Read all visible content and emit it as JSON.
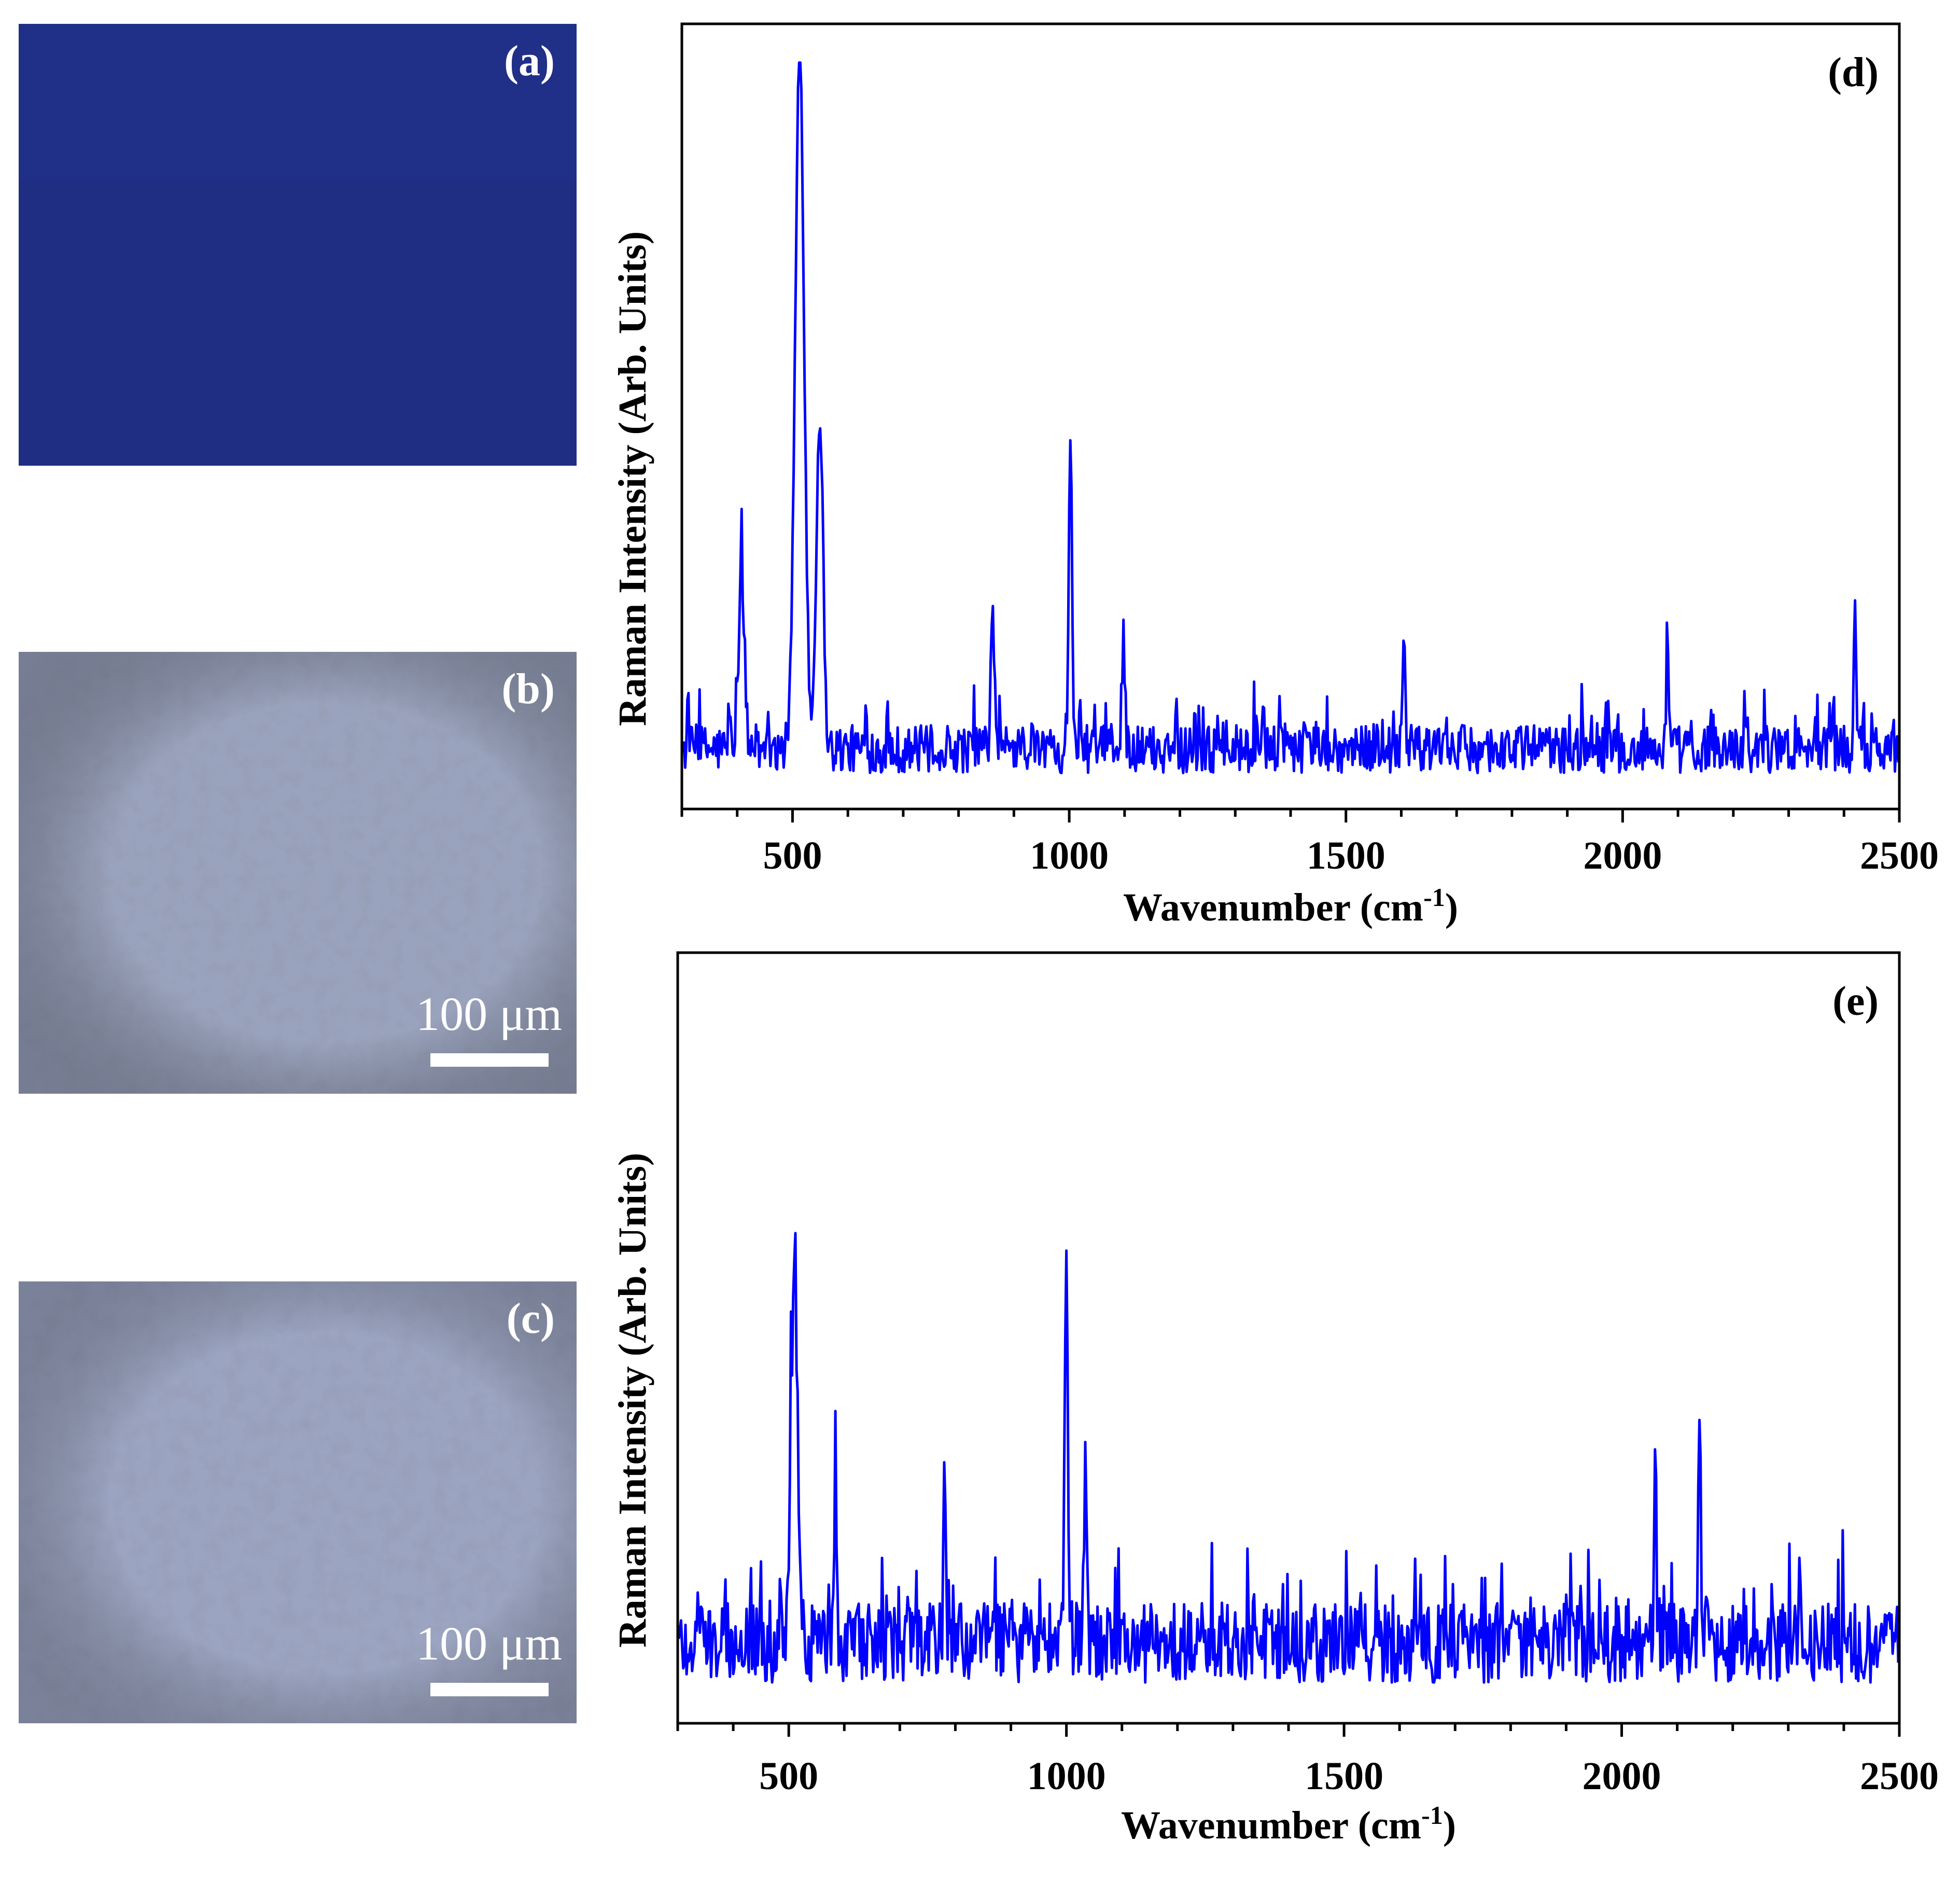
{
  "panels": {
    "a": {
      "label": "(a)"
    },
    "b": {
      "label": "(b)",
      "scale": "100 μm"
    },
    "c": {
      "label": "(c)",
      "scale": "100 μm"
    }
  },
  "colors": {
    "photo_a": "#1f2d83",
    "photo_bc": "#9aa3bd",
    "series": "#0000ff"
  },
  "chart_data": [
    {
      "type": "line",
      "label": "(d)",
      "xlabel": "Wavenumber (cm",
      "xlabel_sup": "-1",
      "xlabel_end": ")",
      "ylabel": "Raman Intensity (Arb. Units)",
      "xlim": [
        300,
        2500
      ],
      "ylim": [
        0,
        1
      ],
      "xticks": [
        500,
        1000,
        1500,
        2000,
        2500
      ],
      "grid": false,
      "noise_amplitude": 0.065,
      "baseline": 0.06,
      "series": [
        {
          "peaks": [
            {
              "x": 408,
              "y": 0.25,
              "w": 5
            },
            {
              "x": 513,
              "y": 0.96,
              "w": 8
            },
            {
              "x": 549,
              "y": 0.46,
              "w": 6
            },
            {
              "x": 862,
              "y": 0.18,
              "w": 3
            },
            {
              "x": 1002,
              "y": 0.41,
              "w": 3
            },
            {
              "x": 1098,
              "y": 0.15,
              "w": 3
            },
            {
              "x": 1604,
              "y": 0.13,
              "w": 3
            },
            {
              "x": 2081,
              "y": 0.18,
              "w": 2
            },
            {
              "x": 2420,
              "y": 0.18,
              "w": 2
            }
          ]
        }
      ]
    },
    {
      "type": "line",
      "label": "(e)",
      "xlabel": "Wavenumber (cm",
      "xlabel_sup": "-1",
      "xlabel_end": ")",
      "ylabel": "Raman Intensity (Arb. Units)",
      "xlim": [
        300,
        2500
      ],
      "ylim": [
        0,
        1
      ],
      "xticks": [
        500,
        1000,
        1500,
        2000,
        2500
      ],
      "grid": false,
      "noise_amplitude": 0.11,
      "baseline": 0.09,
      "series": [
        {
          "peaks": [
            {
              "x": 510,
              "y": 0.52,
              "w": 6
            },
            {
              "x": 584,
              "y": 0.27,
              "w": 2
            },
            {
              "x": 781,
              "y": 0.25,
              "w": 2
            },
            {
              "x": 1000,
              "y": 0.5,
              "w": 3
            },
            {
              "x": 1035,
              "y": 0.26,
              "w": 2
            },
            {
              "x": 2060,
              "y": 0.29,
              "w": 2
            },
            {
              "x": 2140,
              "y": 0.28,
              "w": 2
            }
          ]
        }
      ]
    }
  ]
}
